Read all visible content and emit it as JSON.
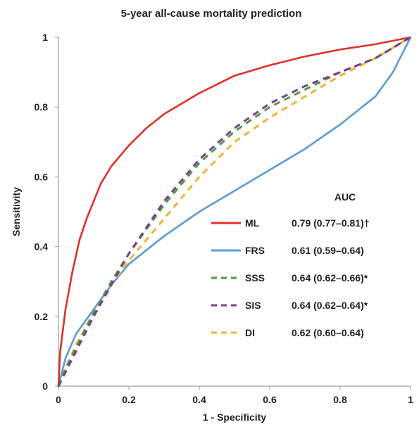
{
  "chart_data": {
    "type": "line",
    "title": "5-year all-cause mortality prediction",
    "xlabel": "1 - Specificity",
    "ylabel": "Sensitivity",
    "xlim": [
      0,
      1
    ],
    "ylim": [
      0,
      1
    ],
    "x_ticks": [
      "0",
      "0.2",
      "0.4",
      "0.6",
      "0.8",
      "1"
    ],
    "y_ticks": [
      "0",
      "0.2",
      "0.4",
      "0.6",
      "0.8",
      "1"
    ],
    "grid": false,
    "legend_header": "AUC",
    "legend_position": "lower-right",
    "series": [
      {
        "name": "ML",
        "auc": "0.79 (0.77–0.81)†",
        "color": "#e0302a",
        "style": "solid",
        "x": [
          0,
          0.005,
          0.01,
          0.02,
          0.04,
          0.06,
          0.08,
          0.1,
          0.12,
          0.15,
          0.2,
          0.25,
          0.3,
          0.35,
          0.4,
          0.5,
          0.6,
          0.7,
          0.8,
          0.9,
          1
        ],
        "y": [
          0,
          0.1,
          0.14,
          0.22,
          0.33,
          0.42,
          0.48,
          0.53,
          0.58,
          0.63,
          0.69,
          0.74,
          0.78,
          0.81,
          0.84,
          0.89,
          0.92,
          0.945,
          0.965,
          0.98,
          1
        ]
      },
      {
        "name": "FRS",
        "auc": "0.61 (0.59–0.64)",
        "color": "#5b9bd5",
        "style": "solid",
        "x": [
          0,
          0.02,
          0.05,
          0.1,
          0.15,
          0.2,
          0.3,
          0.4,
          0.5,
          0.6,
          0.7,
          0.8,
          0.9,
          0.95,
          1
        ],
        "y": [
          0,
          0.08,
          0.15,
          0.22,
          0.29,
          0.35,
          0.43,
          0.5,
          0.56,
          0.62,
          0.68,
          0.75,
          0.83,
          0.9,
          1
        ]
      },
      {
        "name": "SSS",
        "auc": "0.64 (0.62–0.66)*",
        "color": "#4e9a3e",
        "style": "dashed",
        "x": [
          0,
          0.02,
          0.05,
          0.1,
          0.15,
          0.2,
          0.3,
          0.4,
          0.5,
          0.6,
          0.7,
          0.8,
          0.9,
          1
        ],
        "y": [
          0,
          0.05,
          0.11,
          0.21,
          0.3,
          0.38,
          0.52,
          0.64,
          0.73,
          0.8,
          0.85,
          0.9,
          0.94,
          1
        ]
      },
      {
        "name": "SIS",
        "auc": "0.64 (0.62–0.64)*",
        "color": "#7a3e96",
        "style": "dashed",
        "x": [
          0,
          0.02,
          0.05,
          0.1,
          0.15,
          0.2,
          0.3,
          0.4,
          0.5,
          0.6,
          0.7,
          0.8,
          0.9,
          1
        ],
        "y": [
          0,
          0.04,
          0.1,
          0.2,
          0.29,
          0.38,
          0.53,
          0.65,
          0.74,
          0.81,
          0.86,
          0.9,
          0.94,
          1
        ]
      },
      {
        "name": "DI",
        "auc": "0.62 (0.60–0.64)",
        "color": "#f2b233",
        "style": "dashed",
        "x": [
          0,
          0.02,
          0.05,
          0.1,
          0.15,
          0.2,
          0.3,
          0.4,
          0.5,
          0.6,
          0.7,
          0.8,
          0.9,
          1
        ],
        "y": [
          0,
          0.05,
          0.12,
          0.21,
          0.29,
          0.36,
          0.48,
          0.6,
          0.7,
          0.77,
          0.83,
          0.89,
          0.94,
          1
        ]
      }
    ]
  }
}
